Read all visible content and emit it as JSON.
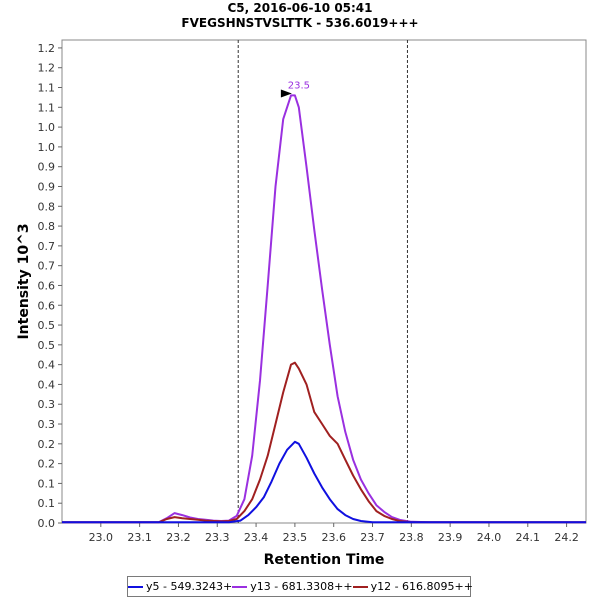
{
  "title": "C5, 2016-06-10 05:41",
  "subtitle": "FVEGSHNSTVSLTTK - 536.6019+++",
  "chart_data": {
    "type": "line",
    "xlabel": "Retention Time",
    "ylabel": "Intensity 10^3",
    "xlim": [
      22.9,
      24.25
    ],
    "ylim": [
      0.0,
      1.22
    ],
    "x_ticks": [
      "23.0",
      "23.1",
      "23.2",
      "23.3",
      "23.4",
      "23.5",
      "23.6",
      "23.7",
      "23.8",
      "23.9",
      "24.0",
      "24.1",
      "24.2"
    ],
    "y_ticks": [
      "0.0",
      "0.1",
      "0.1",
      "0.2",
      "0.2",
      "0.3",
      "0.3",
      "0.4",
      "0.4",
      "0.5",
      "0.5",
      "0.6",
      "0.6",
      "0.7",
      "0.7",
      "0.8",
      "0.8",
      "0.9",
      "0.9",
      "1.0",
      "1.0",
      "1.1",
      "1.1",
      "1.2",
      "1.2"
    ],
    "vlines": [
      23.354,
      23.79
    ],
    "annotation": {
      "label": "23.5",
      "x": 23.5,
      "y": 1.085
    },
    "legend_position": "bottom",
    "grid": false,
    "series": [
      {
        "name": "y5 - 549.3243+",
        "color": "#1010e0",
        "x": [
          22.9,
          23.33,
          23.36,
          23.38,
          23.4,
          23.42,
          23.44,
          23.46,
          23.48,
          23.5,
          23.51,
          23.53,
          23.55,
          23.57,
          23.59,
          23.61,
          23.63,
          23.65,
          23.67,
          23.7,
          23.75,
          24.25
        ],
        "y": [
          0.002,
          0.002,
          0.006,
          0.02,
          0.04,
          0.065,
          0.105,
          0.15,
          0.185,
          0.205,
          0.2,
          0.165,
          0.125,
          0.09,
          0.06,
          0.035,
          0.02,
          0.01,
          0.005,
          0.002,
          0.002,
          0.002
        ]
      },
      {
        "name": "y13 - 681.3308++",
        "color": "#9a30e0",
        "x": [
          22.9,
          23.15,
          23.17,
          23.19,
          23.21,
          23.23,
          23.25,
          23.27,
          23.29,
          23.31,
          23.33,
          23.35,
          23.37,
          23.39,
          23.41,
          23.43,
          23.45,
          23.47,
          23.49,
          23.5,
          23.51,
          23.53,
          23.55,
          23.57,
          23.59,
          23.61,
          23.63,
          23.65,
          23.67,
          23.69,
          23.71,
          23.73,
          23.75,
          23.77,
          23.8,
          23.85,
          24.25
        ],
        "y": [
          0.002,
          0.002,
          0.012,
          0.025,
          0.02,
          0.014,
          0.01,
          0.008,
          0.006,
          0.005,
          0.006,
          0.018,
          0.06,
          0.17,
          0.36,
          0.6,
          0.85,
          1.02,
          1.08,
          1.08,
          1.05,
          0.9,
          0.74,
          0.59,
          0.45,
          0.32,
          0.23,
          0.16,
          0.11,
          0.075,
          0.045,
          0.028,
          0.015,
          0.008,
          0.003,
          0.002,
          0.002
        ]
      },
      {
        "name": "y12 - 616.8095++",
        "color": "#a02020",
        "x": [
          22.9,
          23.15,
          23.17,
          23.19,
          23.21,
          23.23,
          23.25,
          23.27,
          23.29,
          23.31,
          23.33,
          23.35,
          23.37,
          23.39,
          23.41,
          23.43,
          23.45,
          23.47,
          23.49,
          23.5,
          23.51,
          23.53,
          23.55,
          23.57,
          23.59,
          23.61,
          23.63,
          23.65,
          23.67,
          23.69,
          23.71,
          23.73,
          23.75,
          23.77,
          23.8,
          24.25
        ],
        "y": [
          0.002,
          0.002,
          0.01,
          0.015,
          0.012,
          0.01,
          0.008,
          0.006,
          0.005,
          0.004,
          0.005,
          0.01,
          0.03,
          0.06,
          0.11,
          0.17,
          0.25,
          0.33,
          0.4,
          0.405,
          0.39,
          0.35,
          0.28,
          0.25,
          0.22,
          0.2,
          0.16,
          0.12,
          0.085,
          0.055,
          0.03,
          0.018,
          0.01,
          0.005,
          0.002,
          0.002
        ]
      }
    ]
  }
}
